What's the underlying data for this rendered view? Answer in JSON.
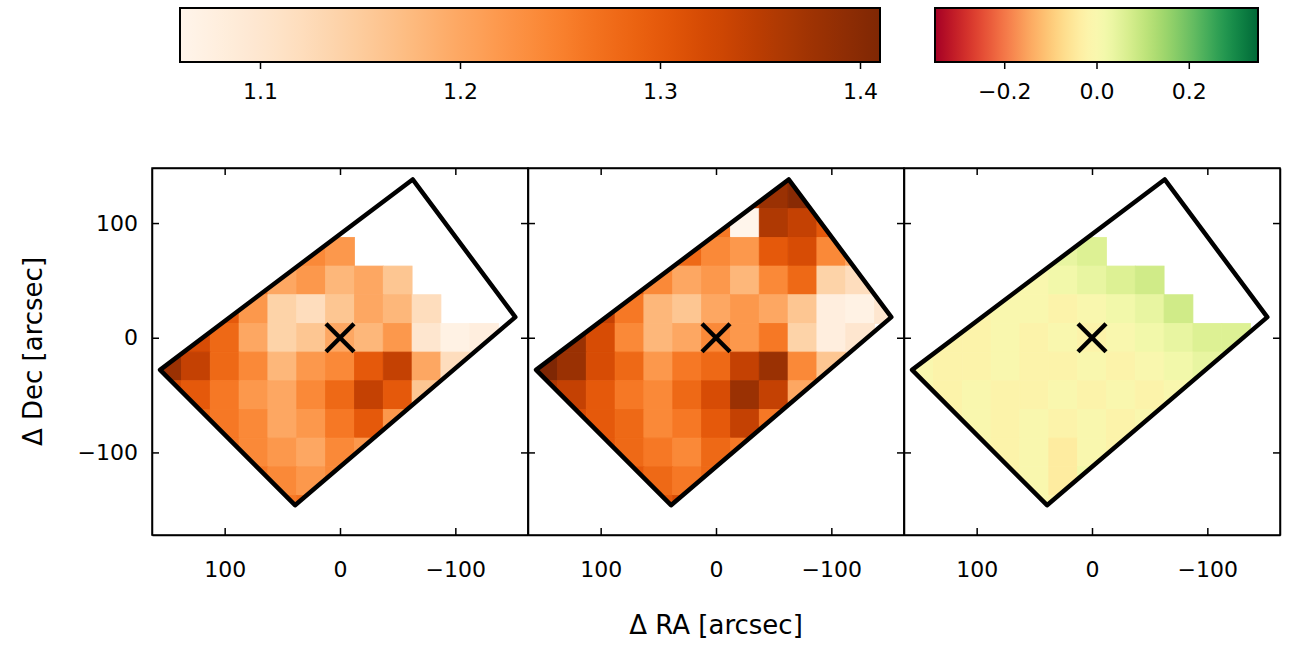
{
  "chart_data": {
    "type": "heatmap",
    "x_label": "Δ RA [arcsec]",
    "y_label": "Δ Dec [arcsec]",
    "xlim": [
      163,
      -163
    ],
    "ylim": [
      -172,
      148
    ],
    "xticks": [
      100,
      0,
      {
        "value": -100,
        "label": "−100"
      }
    ],
    "yticks": [
      {
        "value": -100,
        "label": "−100"
      },
      0,
      100
    ],
    "x": [
      150,
      125,
      100,
      75,
      50,
      25,
      0,
      -25,
      -50,
      -75,
      -100,
      -125,
      -150
    ],
    "y": [
      125,
      100,
      75,
      50,
      25,
      0,
      -25,
      -50,
      -75,
      -100,
      -125,
      -150
    ],
    "footprint": {
      "x": [
        -63,
        -152,
        39,
        156
      ],
      "y": [
        138,
        18,
        -146,
        -28
      ]
    },
    "target": {
      "x": 0,
      "y": 0
    },
    "marker": "x",
    "colorbars": [
      {
        "range": [
          1.06,
          1.41
        ],
        "ticks": [
          1.1,
          1.2,
          1.3,
          1.4
        ],
        "panels": [
          {
            "z": [
              [
                null,
                null,
                null,
                null,
                null,
                null,
                null,
                null,
                null,
                null,
                null,
                null,
                null
              ],
              [
                null,
                null,
                null,
                null,
                null,
                null,
                null,
                null,
                null,
                null,
                null,
                null,
                null
              ],
              [
                null,
                null,
                null,
                null,
                null,
                1.24,
                1.22,
                null,
                null,
                null,
                null,
                null,
                null
              ],
              [
                null,
                null,
                null,
                1.26,
                1.2,
                1.22,
                1.18,
                1.2,
                1.16,
                null,
                null,
                null,
                null
              ],
              [
                null,
                null,
                1.3,
                1.22,
                1.14,
                1.12,
                1.16,
                1.2,
                1.18,
                1.12,
                null,
                null,
                null
              ],
              [
                null,
                1.32,
                1.28,
                1.2,
                1.14,
                1.16,
                1.2,
                1.18,
                1.22,
                1.1,
                1.07,
                1.08,
                null
              ],
              [
                1.38,
                1.34,
                1.28,
                1.24,
                1.18,
                1.22,
                1.24,
                1.3,
                1.34,
                1.2,
                1.12,
                null,
                null
              ],
              [
                1.32,
                1.3,
                1.26,
                1.22,
                1.2,
                1.24,
                1.28,
                1.34,
                1.3,
                1.16,
                null,
                null,
                null
              ],
              [
                null,
                1.28,
                1.26,
                1.24,
                1.2,
                1.22,
                1.26,
                1.3,
                1.22,
                null,
                null,
                null,
                null
              ],
              [
                null,
                null,
                1.26,
                1.24,
                1.22,
                1.2,
                1.24,
                1.22,
                null,
                null,
                null,
                null,
                null
              ],
              [
                null,
                null,
                null,
                1.26,
                1.24,
                1.22,
                1.24,
                null,
                null,
                null,
                null,
                null,
                null
              ],
              [
                null,
                null,
                null,
                null,
                1.26,
                1.27,
                null,
                null,
                null,
                null,
                null,
                null,
                null
              ]
            ]
          },
          {
            "z": [
              [
                null,
                null,
                null,
                null,
                null,
                null,
                null,
                1.34,
                1.38,
                1.4,
                null,
                null,
                null
              ],
              [
                null,
                null,
                null,
                null,
                null,
                null,
                1.26,
                1.06,
                1.36,
                1.34,
                1.3,
                null,
                null
              ],
              [
                null,
                null,
                null,
                null,
                null,
                1.28,
                1.24,
                1.22,
                1.3,
                1.32,
                1.24,
                1.2,
                null
              ],
              [
                null,
                null,
                null,
                1.3,
                1.24,
                1.2,
                1.22,
                1.18,
                1.24,
                1.28,
                1.14,
                1.12,
                null
              ],
              [
                null,
                null,
                1.34,
                1.26,
                1.18,
                1.16,
                1.2,
                1.22,
                1.2,
                1.16,
                1.08,
                1.07,
                1.1
              ],
              [
                null,
                1.38,
                1.32,
                1.24,
                1.18,
                1.2,
                1.24,
                1.22,
                1.26,
                1.14,
                1.08,
                1.1,
                null
              ],
              [
                1.41,
                1.38,
                1.32,
                1.28,
                1.22,
                1.26,
                1.28,
                1.34,
                1.38,
                1.24,
                1.16,
                null,
                null
              ],
              [
                1.36,
                1.34,
                1.3,
                1.26,
                1.24,
                1.28,
                1.32,
                1.38,
                1.34,
                1.2,
                null,
                null,
                null
              ],
              [
                null,
                1.32,
                1.3,
                1.28,
                1.24,
                1.26,
                1.3,
                1.34,
                1.26,
                null,
                null,
                null,
                null
              ],
              [
                null,
                null,
                1.3,
                1.28,
                1.26,
                1.24,
                1.28,
                1.26,
                null,
                null,
                null,
                null,
                null
              ],
              [
                null,
                null,
                null,
                1.3,
                1.28,
                1.26,
                1.28,
                null,
                null,
                null,
                null,
                null,
                null
              ],
              [
                null,
                null,
                null,
                null,
                1.3,
                1.32,
                null,
                null,
                null,
                null,
                null,
                null,
                null
              ]
            ]
          }
        ]
      },
      {
        "range": [
          -0.35,
          0.35
        ],
        "ticks": [
          {
            "value": -0.2,
            "label": "−0.2"
          },
          {
            "value": 0,
            "label": "0.0"
          },
          0.2
        ],
        "panels": [
          {
            "z": [
              [
                null,
                null,
                null,
                null,
                null,
                null,
                null,
                null,
                null,
                null,
                null,
                null,
                null
              ],
              [
                null,
                null,
                null,
                null,
                null,
                null,
                null,
                null,
                null,
                null,
                null,
                null,
                null
              ],
              [
                null,
                null,
                null,
                null,
                null,
                0.04,
                0.06,
                null,
                null,
                null,
                null,
                null,
                null
              ],
              [
                null,
                null,
                null,
                0.02,
                0,
                0.02,
                0.04,
                0.06,
                0.08,
                null,
                null,
                null,
                null
              ],
              [
                null,
                null,
                -0.02,
                0,
                0,
                -0.02,
                0,
                0.02,
                0.04,
                0.08,
                null,
                null,
                null
              ],
              [
                null,
                -0.02,
                -0.02,
                0,
                -0.02,
                0,
                -0.02,
                0,
                0.02,
                0.04,
                0.06,
                0.06,
                null
              ],
              [
                0,
                -0.02,
                -0.02,
                0,
                -0.02,
                -0.02,
                0,
                -0.02,
                0,
                0.02,
                0.04,
                null,
                null
              ],
              [
                0,
                -0.02,
                0,
                -0.02,
                -0.02,
                0,
                -0.02,
                0,
                -0.02,
                0,
                null,
                null,
                null
              ],
              [
                null,
                -0.02,
                0,
                -0.02,
                0,
                -0.02,
                0,
                -0.02,
                0,
                null,
                null,
                null,
                null
              ],
              [
                null,
                null,
                0,
                -0.02,
                0,
                -0.04,
                0,
                -0.02,
                null,
                null,
                null,
                null,
                null
              ],
              [
                null,
                null,
                null,
                -0.02,
                0,
                -0.04,
                0.02,
                null,
                null,
                null,
                null,
                null,
                null
              ],
              [
                null,
                null,
                null,
                null,
                0,
                -0.02,
                null,
                null,
                null,
                null,
                null,
                null,
                null
              ]
            ]
          }
        ]
      }
    ]
  }
}
